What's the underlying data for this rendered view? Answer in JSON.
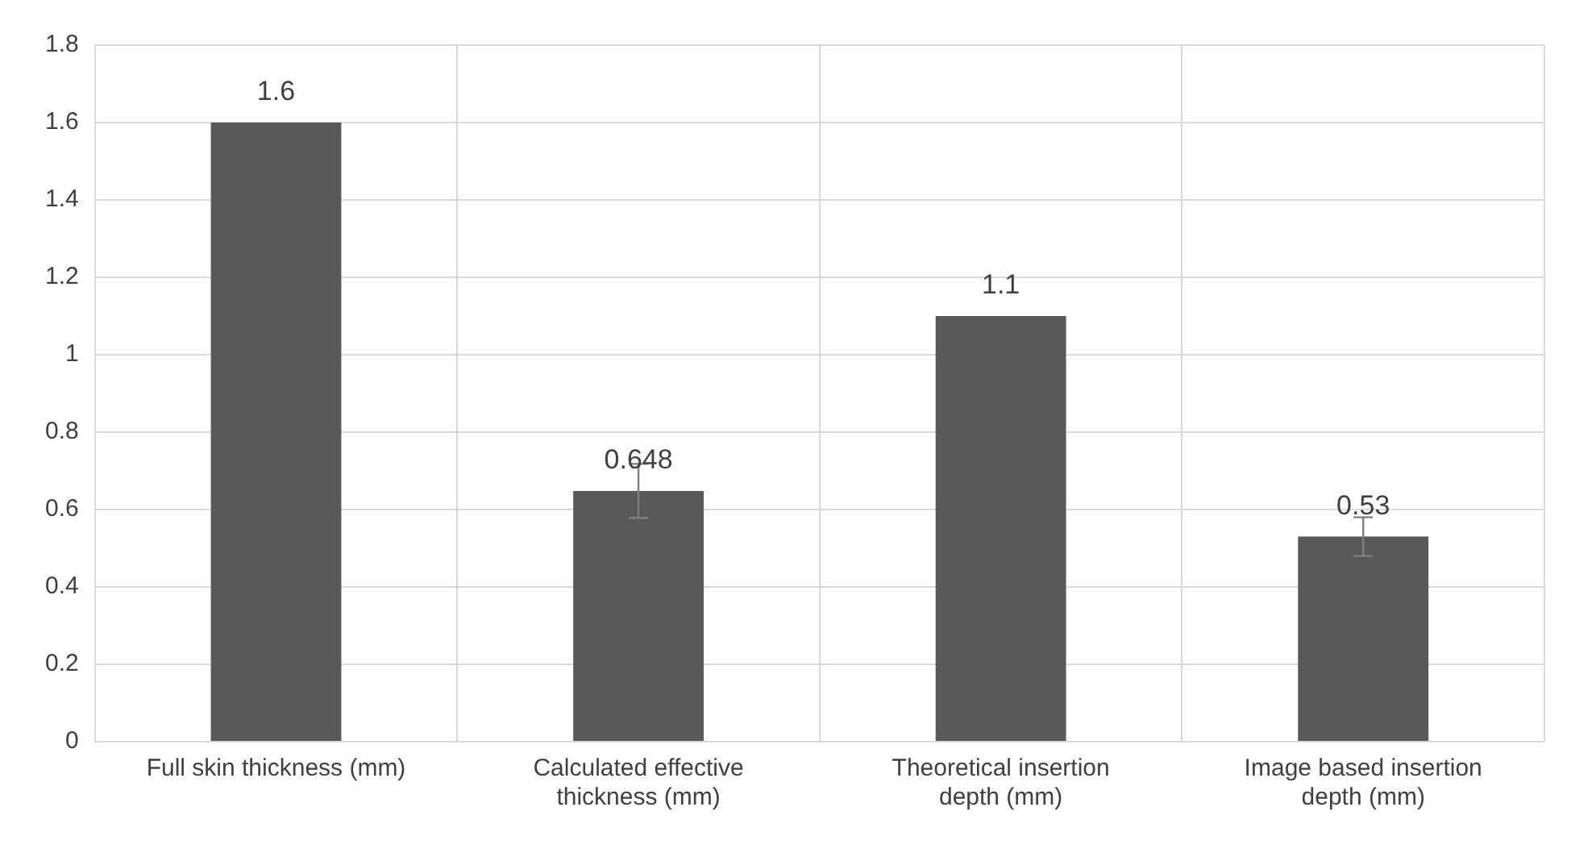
{
  "chart_data": {
    "type": "bar",
    "categories": [
      "Full skin thickness (mm)",
      "Calculated effective thickness (mm)",
      "Theoretical insertion depth (mm)",
      "Image based insertion depth (mm)"
    ],
    "values": [
      1.6,
      0.648,
      1.1,
      0.53
    ],
    "errors": [
      null,
      0.07,
      null,
      0.05
    ],
    "color": "#595959",
    "ylim": [
      0,
      1.8
    ],
    "yticks": [
      0,
      0.2,
      0.4,
      0.6,
      0.8,
      1,
      1.2,
      1.4,
      1.6,
      1.8
    ],
    "grid": true,
    "data_labels": true
  }
}
